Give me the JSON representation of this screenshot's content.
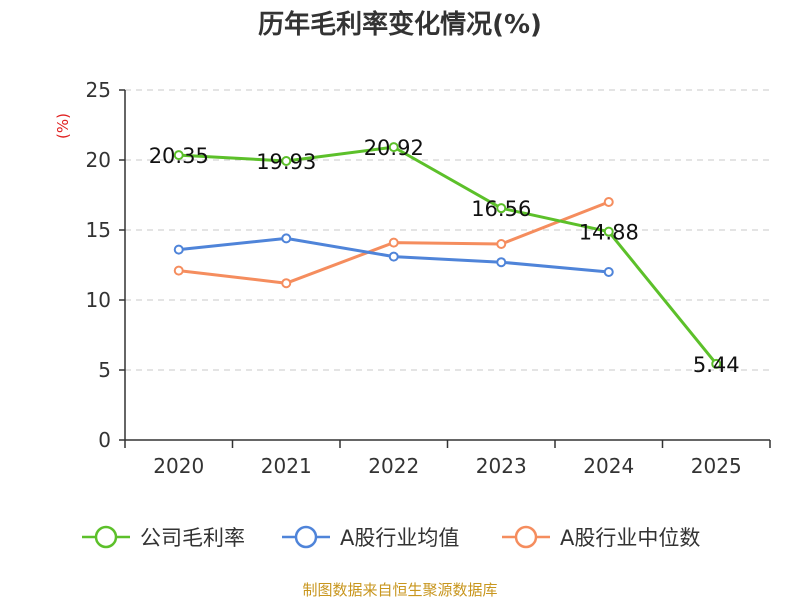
{
  "chart_data": {
    "type": "line",
    "title": "历年毛利率变化情况(%)",
    "y_unit": "(%)",
    "categories": [
      "2020",
      "2021",
      "2022",
      "2023",
      "2024",
      "2025"
    ],
    "ylim": [
      0,
      25
    ],
    "yticks": [
      0,
      5,
      10,
      15,
      20,
      25
    ],
    "grid": true,
    "legend_position": "bottom",
    "series": [
      {
        "name": "公司毛利率",
        "color": "#5cc02a",
        "values": [
          20.35,
          19.93,
          20.92,
          16.56,
          14.88,
          5.44
        ],
        "labels": [
          "20.35",
          "19.93",
          "20.92",
          "16.56",
          "14.88",
          "5.44"
        ]
      },
      {
        "name": "A股行业均值",
        "color": "#4f84d9",
        "values": [
          13.6,
          14.4,
          13.1,
          12.7,
          12.0,
          null
        ]
      },
      {
        "name": "A股行业中位数",
        "color": "#f58d5e",
        "values": [
          12.1,
          11.2,
          14.1,
          14.0,
          17.0,
          null
        ]
      }
    ],
    "source": "制图数据来自恒生聚源数据库"
  }
}
